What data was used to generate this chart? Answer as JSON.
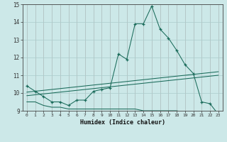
{
  "xlabel": "Humidex (Indice chaleur)",
  "bg_color": "#cce8e8",
  "grid_color": "#aacccc",
  "line_color": "#1a6b5a",
  "x_values": [
    0,
    1,
    2,
    3,
    4,
    5,
    6,
    7,
    8,
    9,
    10,
    11,
    12,
    13,
    14,
    15,
    16,
    17,
    18,
    19,
    20,
    21,
    22,
    23
  ],
  "main_line": [
    10.4,
    10.1,
    9.8,
    9.5,
    9.5,
    9.3,
    9.6,
    9.6,
    10.1,
    10.2,
    10.3,
    12.2,
    11.9,
    13.9,
    13.9,
    14.9,
    13.6,
    13.1,
    12.4,
    11.6,
    11.1,
    9.5,
    9.4,
    8.8
  ],
  "trend_line1": [
    10.05,
    10.1,
    10.15,
    10.2,
    10.25,
    10.3,
    10.35,
    10.4,
    10.45,
    10.5,
    10.55,
    10.6,
    10.65,
    10.7,
    10.75,
    10.8,
    10.85,
    10.9,
    10.95,
    11.0,
    11.05,
    11.1,
    11.15,
    11.2
  ],
  "trend_line2": [
    9.85,
    9.9,
    9.95,
    10.0,
    10.05,
    10.1,
    10.15,
    10.2,
    10.25,
    10.3,
    10.35,
    10.4,
    10.45,
    10.5,
    10.55,
    10.6,
    10.65,
    10.7,
    10.75,
    10.8,
    10.85,
    10.9,
    10.95,
    11.0
  ],
  "bottom_line": [
    9.5,
    9.5,
    9.3,
    9.2,
    9.2,
    9.1,
    9.1,
    9.1,
    9.1,
    9.1,
    9.1,
    9.1,
    9.1,
    9.1,
    9.0,
    9.0,
    9.0,
    9.0,
    9.0,
    8.9,
    8.9,
    8.9,
    8.8,
    8.8
  ],
  "ylim": [
    9,
    15
  ],
  "xlim": [
    -0.5,
    23.5
  ],
  "yticks": [
    9,
    10,
    11,
    12,
    13,
    14,
    15
  ],
  "xticks": [
    0,
    1,
    2,
    3,
    4,
    5,
    6,
    7,
    8,
    9,
    10,
    11,
    12,
    13,
    14,
    15,
    16,
    17,
    18,
    19,
    20,
    21,
    22,
    23
  ]
}
